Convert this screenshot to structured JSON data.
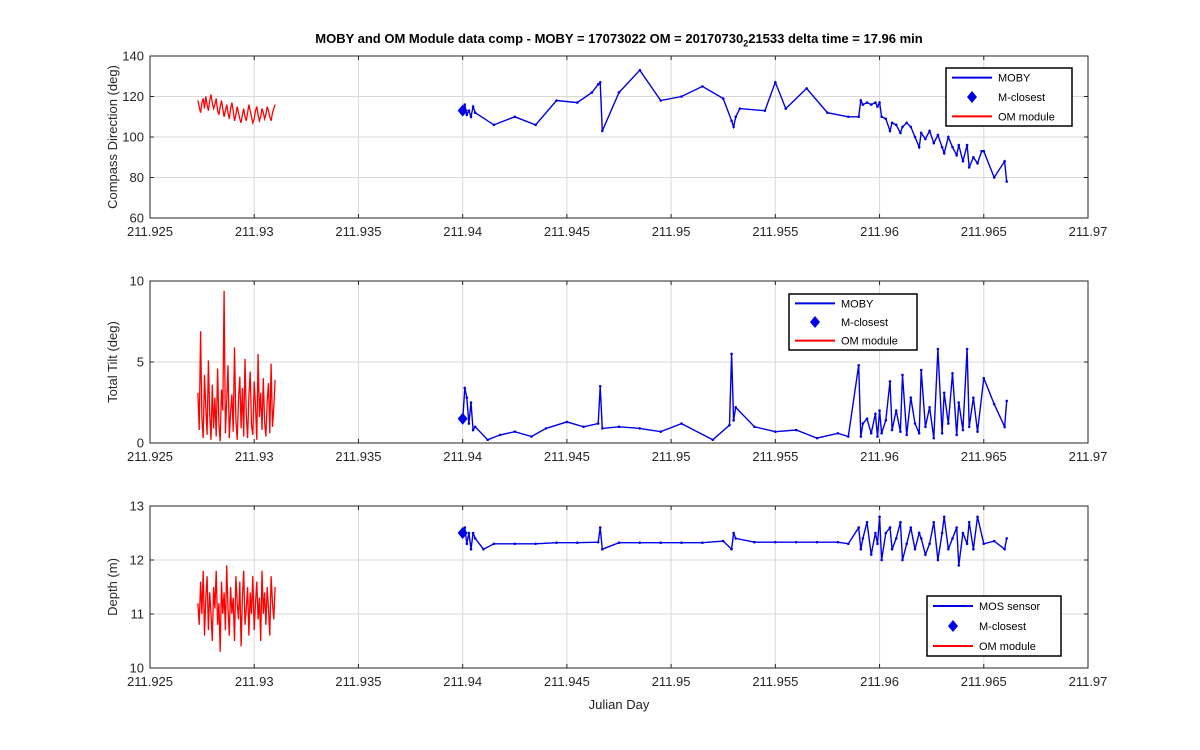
{
  "figure": {
    "title_pre": "MOBY and OM Module data comp - MOBY = 17073022 OM = 20170730",
    "title_sub": "2",
    "title_post": "21533 delta time = 17.96 min",
    "xlabel": "Julian Day"
  },
  "colors": {
    "moby": "#0000e6",
    "om": "#ff0000",
    "grid": "#d9d9d9",
    "axis": "#262626"
  },
  "chart_data": [
    {
      "type": "line",
      "ylabel": "Compass Direction (deg)",
      "xlim": [
        211.925,
        211.97
      ],
      "ylim": [
        60,
        140
      ],
      "xticks": [
        211.925,
        211.93,
        211.935,
        211.94,
        211.945,
        211.95,
        211.955,
        211.96,
        211.965,
        211.97
      ],
      "xtick_labels": [
        "211.925",
        "211.93",
        "211.935",
        "211.94",
        "211.945",
        "211.95",
        "211.955",
        "211.96",
        "211.965",
        "211.97"
      ],
      "yticks": [
        60,
        80,
        100,
        120,
        140
      ],
      "ytick_labels": [
        "60",
        "80",
        "100",
        "120",
        "140"
      ],
      "grid": true,
      "legend_position": "top-right",
      "legend": [
        "MOBY",
        "M-closest",
        "OM module"
      ],
      "series": [
        {
          "name": "MOBY",
          "x": [
            211.94,
            211.9401,
            211.9402,
            211.9403,
            211.9404,
            211.9405,
            211.9406,
            211.9415,
            211.9425,
            211.9435,
            211.9445,
            211.9455,
            211.9462,
            211.9465,
            211.9466,
            211.9467,
            211.9475,
            211.9485,
            211.9495,
            211.9505,
            211.9515,
            211.9525,
            211.9529,
            211.953,
            211.9531,
            211.9533,
            211.9545,
            211.955,
            211.9555,
            211.9565,
            211.9575,
            211.9585,
            211.959,
            211.9591,
            211.9592,
            211.9594,
            211.9596,
            211.9598,
            211.9599,
            211.96,
            211.9601,
            211.9603,
            211.9605,
            211.9606,
            211.9608,
            211.961,
            211.9611,
            211.9613,
            211.9615,
            211.9617,
            211.9619,
            211.962,
            211.9622,
            211.9624,
            211.9626,
            211.9628,
            211.963,
            211.9631,
            211.9633,
            211.9635,
            211.9637,
            211.9638,
            211.964,
            211.9642,
            211.9643,
            211.9645,
            211.9647,
            211.9649,
            211.965,
            211.9655,
            211.966,
            211.9661
          ],
          "y": [
            112,
            116,
            111,
            113,
            110,
            115,
            112,
            106,
            110,
            106,
            118,
            117,
            122,
            126,
            127,
            103,
            122,
            133,
            118,
            120,
            125,
            119,
            108,
            105,
            110,
            114,
            113,
            127,
            114,
            124,
            112,
            110,
            110,
            118,
            116,
            117,
            116,
            117,
            115,
            117,
            110,
            109,
            103,
            107,
            106,
            102,
            105,
            107,
            105,
            100,
            95,
            102,
            99,
            103,
            97,
            101,
            95,
            92,
            100,
            95,
            91,
            96,
            88,
            96,
            85,
            90,
            87,
            93,
            93,
            80,
            88,
            78
          ]
        },
        {
          "name": "M-closest",
          "x": [
            211.94
          ],
          "y": [
            113
          ]
        },
        {
          "name": "OM module",
          "x_start": 211.9273,
          "x_end": 211.931,
          "y": [
            118,
            115,
            112,
            117,
            119,
            114,
            120,
            116,
            113,
            118,
            121,
            117,
            114,
            116,
            119,
            113,
            111,
            115,
            118,
            114,
            110,
            113,
            116,
            112,
            109,
            114,
            117,
            113,
            108,
            111,
            115,
            112,
            109,
            107,
            111,
            114,
            110,
            108,
            112,
            116,
            113,
            110,
            107,
            109,
            113,
            115,
            111,
            108,
            110,
            114,
            112,
            109,
            111,
            115,
            113,
            110,
            108,
            112,
            114,
            116
          ]
        }
      ]
    },
    {
      "type": "line",
      "ylabel": "Total Tilt (deg)",
      "xlim": [
        211.925,
        211.97
      ],
      "ylim": [
        0,
        10
      ],
      "xticks": [
        211.925,
        211.93,
        211.935,
        211.94,
        211.945,
        211.95,
        211.955,
        211.96,
        211.965,
        211.97
      ],
      "xtick_labels": [
        "211.925",
        "211.93",
        "211.935",
        "211.94",
        "211.945",
        "211.95",
        "211.955",
        "211.96",
        "211.965",
        "211.97"
      ],
      "yticks": [
        0,
        5,
        10
      ],
      "ytick_labels": [
        "0",
        "5",
        "10"
      ],
      "grid": true,
      "legend_position": "top-center",
      "legend": [
        "MOBY",
        "M-closest",
        "OM module"
      ],
      "series": [
        {
          "name": "MOBY",
          "x": [
            211.94,
            211.9401,
            211.9402,
            211.9403,
            211.9404,
            211.9405,
            211.9406,
            211.9412,
            211.9418,
            211.9425,
            211.9433,
            211.944,
            211.945,
            211.9458,
            211.9465,
            211.9466,
            211.9467,
            211.9475,
            211.9485,
            211.9495,
            211.9505,
            211.952,
            211.9528,
            211.9529,
            211.953,
            211.9531,
            211.954,
            211.955,
            211.956,
            211.957,
            211.958,
            211.9585,
            211.959,
            211.9591,
            211.9592,
            211.9594,
            211.9596,
            211.9598,
            211.9599,
            211.96,
            211.9601,
            211.9603,
            211.9605,
            211.9606,
            211.9608,
            211.961,
            211.9611,
            211.9613,
            211.9615,
            211.9617,
            211.9619,
            211.962,
            211.9622,
            211.9624,
            211.9626,
            211.9628,
            211.963,
            211.9631,
            211.9633,
            211.9635,
            211.9637,
            211.9638,
            211.964,
            211.9642,
            211.9643,
            211.9645,
            211.9647,
            211.965,
            211.9655,
            211.966,
            211.9661
          ],
          "y": [
            1.4,
            3.4,
            2.8,
            1.2,
            2.5,
            0.8,
            1.0,
            0.2,
            0.5,
            0.7,
            0.4,
            0.9,
            1.3,
            1.0,
            1.2,
            3.5,
            0.9,
            1.0,
            0.9,
            0.7,
            1.2,
            0.2,
            1.1,
            5.5,
            1.4,
            2.2,
            1.0,
            0.7,
            0.8,
            0.3,
            0.6,
            0.4,
            4.8,
            0.4,
            1.2,
            1.5,
            0.6,
            1.8,
            0.4,
            2.0,
            0.6,
            1.4,
            3.8,
            0.8,
            2.0,
            0.7,
            4.2,
            0.5,
            2.8,
            1.2,
            0.6,
            4.5,
            1.0,
            2.2,
            0.3,
            5.8,
            0.6,
            3.1,
            1.2,
            4.3,
            0.5,
            2.5,
            0.8,
            5.8,
            1.0,
            2.8,
            0.7,
            4.0,
            2.4,
            1.0,
            2.6
          ]
        },
        {
          "name": "M-closest",
          "x": [
            211.94
          ],
          "y": [
            1.5
          ]
        },
        {
          "name": "OM module",
          "x_start": 211.9273,
          "x_end": 211.931,
          "y": [
            3.1,
            0.8,
            6.9,
            1.5,
            0.3,
            4.2,
            2.2,
            0.5,
            5.1,
            1.8,
            0.2,
            3.6,
            0.9,
            2.8,
            0.4,
            4.6,
            1.2,
            0.1,
            3.3,
            2.0,
            9.4,
            0.6,
            2.5,
            4.8,
            0.3,
            1.9,
            3.0,
            0.7,
            5.9,
            1.4,
            0.2,
            2.7,
            4.1,
            0.9,
            3.4,
            0.4,
            5.2,
            1.7,
            0.3,
            2.9,
            4.4,
            1.1,
            0.5,
            3.8,
            2.3,
            0.2,
            5.5,
            1.6,
            3.1,
            0.8,
            4.0,
            1.3,
            0.4,
            2.6,
            3.7,
            0.6,
            4.9,
            1.0,
            2.2,
            3.9
          ]
        }
      ]
    },
    {
      "type": "line",
      "ylabel": "Depth (m)",
      "xlim": [
        211.925,
        211.97
      ],
      "ylim": [
        10,
        13
      ],
      "xticks": [
        211.925,
        211.93,
        211.935,
        211.94,
        211.945,
        211.95,
        211.955,
        211.96,
        211.965,
        211.97
      ],
      "xtick_labels": [
        "211.925",
        "211.93",
        "211.935",
        "211.94",
        "211.945",
        "211.95",
        "211.955",
        "211.96",
        "211.965",
        "211.97"
      ],
      "yticks": [
        10,
        11,
        12,
        13
      ],
      "ytick_labels": [
        "10",
        "11",
        "12",
        "13"
      ],
      "grid": true,
      "legend_position": "bottom-right",
      "legend": [
        "MOS sensor",
        "M-closest",
        "OM module"
      ],
      "series": [
        {
          "name": "MOS sensor",
          "x": [
            211.94,
            211.9401,
            211.9402,
            211.9403,
            211.9404,
            211.9405,
            211.9406,
            211.941,
            211.9415,
            211.9425,
            211.9435,
            211.9445,
            211.9455,
            211.9465,
            211.9466,
            211.9467,
            211.9475,
            211.9485,
            211.9495,
            211.9505,
            211.9515,
            211.9525,
            211.9529,
            211.953,
            211.9531,
            211.954,
            211.955,
            211.956,
            211.957,
            211.958,
            211.9585,
            211.959,
            211.9591,
            211.9592,
            211.9594,
            211.9596,
            211.9598,
            211.9599,
            211.96,
            211.9601,
            211.9603,
            211.9605,
            211.9606,
            211.9608,
            211.961,
            211.9611,
            211.9613,
            211.9615,
            211.9617,
            211.9619,
            211.962,
            211.9622,
            211.9624,
            211.9626,
            211.9628,
            211.963,
            211.9631,
            211.9633,
            211.9635,
            211.9637,
            211.9638,
            211.964,
            211.9642,
            211.9643,
            211.9645,
            211.9647,
            211.965,
            211.9655,
            211.966,
            211.9661
          ],
          "y": [
            12.5,
            12.6,
            12.3,
            12.5,
            12.2,
            12.5,
            12.4,
            12.2,
            12.3,
            12.3,
            12.3,
            12.32,
            12.32,
            12.33,
            12.6,
            12.2,
            12.32,
            12.32,
            12.32,
            12.32,
            12.32,
            12.35,
            12.2,
            12.5,
            12.4,
            12.33,
            12.33,
            12.33,
            12.33,
            12.33,
            12.3,
            12.6,
            12.2,
            12.4,
            12.7,
            12.1,
            12.5,
            12.3,
            12.8,
            12.0,
            12.5,
            12.6,
            12.2,
            12.4,
            12.7,
            12.0,
            12.3,
            12.6,
            12.2,
            12.5,
            12.4,
            12.1,
            12.3,
            12.7,
            12.0,
            12.5,
            12.8,
            12.2,
            12.4,
            12.6,
            11.9,
            12.5,
            12.3,
            12.7,
            12.2,
            12.8,
            12.3,
            12.35,
            12.2,
            12.4
          ]
        },
        {
          "name": "M-closest",
          "x": [
            211.94
          ],
          "y": [
            12.5
          ]
        },
        {
          "name": "OM module",
          "x_start": 211.9273,
          "x_end": 211.931,
          "y": [
            11.2,
            10.8,
            11.6,
            11.0,
            11.8,
            10.6,
            11.3,
            11.7,
            10.7,
            11.4,
            11.0,
            10.5,
            11.5,
            11.1,
            11.8,
            10.8,
            11.2,
            10.3,
            11.6,
            11.0,
            11.4,
            10.7,
            11.9,
            11.1,
            10.6,
            11.5,
            11.0,
            11.3,
            10.5,
            11.7,
            11.2,
            10.9,
            11.6,
            10.4,
            11.3,
            11.8,
            10.8,
            11.1,
            11.5,
            10.6,
            11.4,
            11.0,
            11.7,
            10.7,
            11.2,
            11.6,
            10.9,
            11.3,
            10.5,
            11.8,
            11.0,
            11.4,
            10.8,
            11.5,
            11.1,
            10.6,
            11.7,
            11.2,
            10.9,
            11.5
          ]
        }
      ]
    }
  ]
}
